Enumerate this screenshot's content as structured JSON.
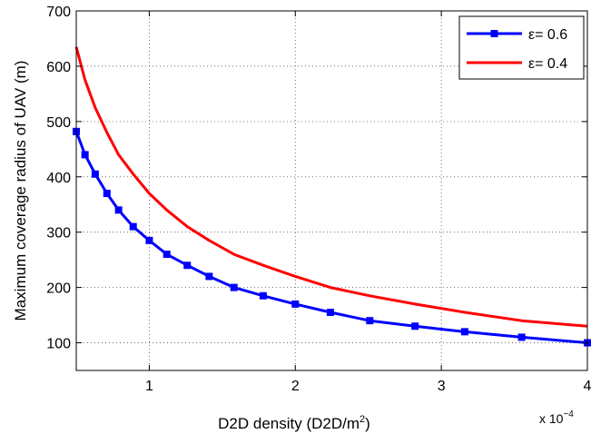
{
  "chart_data": {
    "type": "line",
    "title": "",
    "xlabel_main": "D2D density (D2D/m",
    "xlabel_sup": "2",
    "xlabel_end": ")",
    "ylabel": "Maximum coverage radius of UAV (m)",
    "x_multiplier_base": "x 10",
    "x_multiplier_exp": "−4",
    "xlim": [
      0.5,
      4
    ],
    "ylim": [
      50,
      700
    ],
    "xticks": [
      1,
      2,
      3,
      4
    ],
    "yticks": [
      100,
      200,
      300,
      400,
      500,
      600,
      700
    ],
    "grid": true,
    "legend_position": "top-right",
    "series": [
      {
        "name": "ε= 0.6",
        "color": "#0000ff",
        "marker": "square",
        "x": [
          0.5,
          0.56,
          0.63,
          0.71,
          0.79,
          0.89,
          1.0,
          1.12,
          1.26,
          1.41,
          1.58,
          1.78,
          2.0,
          2.24,
          2.51,
          2.82,
          3.16,
          3.55,
          4.0
        ],
        "y": [
          482,
          440,
          405,
          370,
          340,
          310,
          285,
          260,
          240,
          220,
          200,
          185,
          170,
          155,
          140,
          130,
          120,
          110,
          100
        ]
      },
      {
        "name": "ε= 0.4",
        "color": "#ff0000",
        "marker": "none",
        "x": [
          0.5,
          0.56,
          0.63,
          0.71,
          0.79,
          0.89,
          1.0,
          1.12,
          1.26,
          1.41,
          1.58,
          1.78,
          2.0,
          2.24,
          2.51,
          2.82,
          3.16,
          3.55,
          4.0
        ],
        "y": [
          635,
          575,
          525,
          480,
          440,
          405,
          370,
          340,
          310,
          285,
          260,
          240,
          220,
          200,
          185,
          170,
          155,
          140,
          130
        ]
      }
    ]
  }
}
